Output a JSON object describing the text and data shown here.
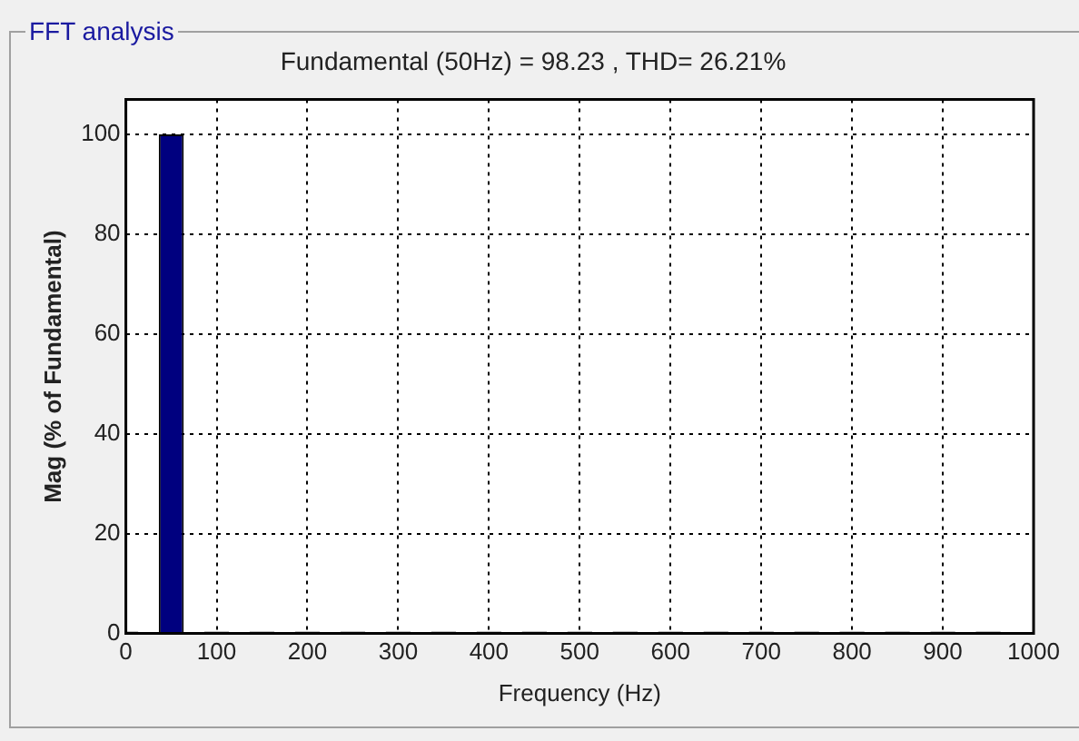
{
  "chart_data": {
    "type": "bar",
    "title": "Fundamental (50Hz) = 98.23 , THD= 26.21%",
    "xlabel": "Frequency (Hz)",
    "ylabel": "Mag (% of Fundamental)",
    "annotations": [
      "FFT analysis"
    ],
    "x": [
      0,
      50,
      100,
      150,
      200,
      250,
      300,
      350,
      400,
      450,
      500,
      550,
      600,
      650,
      700,
      750,
      800,
      850,
      900,
      950
    ],
    "values": [
      0.4,
      100,
      0.4,
      0.4,
      0.4,
      0.4,
      0.4,
      0.4,
      0.4,
      0.4,
      0.4,
      0.4,
      0.4,
      0.4,
      0.4,
      0.4,
      0.4,
      0.4,
      0.4,
      0.4
    ],
    "color": "#00007f",
    "xlim": [
      0,
      1000
    ],
    "xticks": [
      0,
      100,
      200,
      300,
      400,
      500,
      600,
      700,
      800,
      900,
      1000
    ],
    "ylim": [
      0,
      107
    ],
    "yticks": [
      0,
      20,
      40,
      60,
      80,
      100
    ],
    "grid": true,
    "legend": false
  }
}
